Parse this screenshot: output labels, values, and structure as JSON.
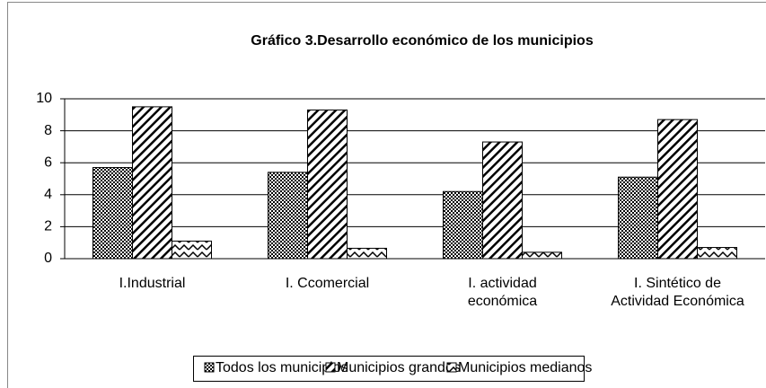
{
  "chart_data": {
    "type": "bar",
    "title": "Gráfico 3.Desarrollo económico de los municipios",
    "categories": [
      "I.Industrial",
      "I. Ccomercial",
      "I. actividad\neconómica",
      "I. Sintético de\nActividad Económica"
    ],
    "series": [
      {
        "name": "Todos los municipios",
        "color": "#000000",
        "pattern": "checker",
        "values": [
          5.7,
          5.4,
          4.2,
          5.1
        ]
      },
      {
        "name": "Municipios grandes",
        "color": "#000000",
        "pattern": "diagonal",
        "values": [
          9.5,
          9.3,
          7.3,
          8.7
        ]
      },
      {
        "name": "Municipios medianos",
        "color": "#000000",
        "pattern": "zigzag",
        "values": [
          1.1,
          0.65,
          0.4,
          0.7
        ]
      }
    ],
    "ylim": [
      0,
      10
    ],
    "yticks": [
      0,
      2,
      4,
      6,
      8,
      10
    ],
    "grid": true,
    "legend": "bottom"
  }
}
